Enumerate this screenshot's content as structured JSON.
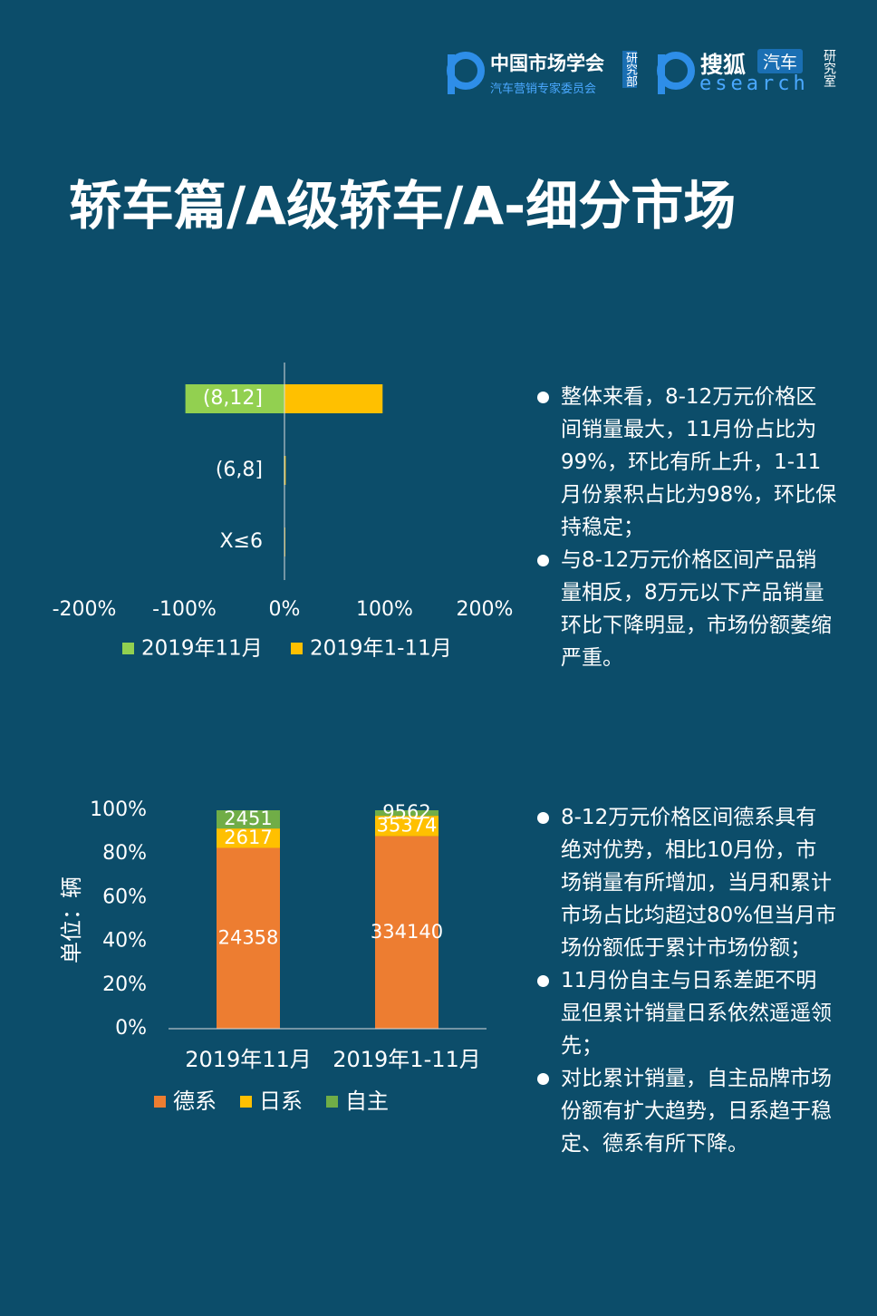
{
  "header": {
    "org1_name": "中国市场学会",
    "org1_sub": "汽车营销专家委员会",
    "org1_dept": "研究部",
    "org2_name": "搜狐",
    "org2_tag": "汽车",
    "org2_word": "esearch",
    "org2_dept": "研究室"
  },
  "title": "轿车篇/A级轿车/A-细分市场",
  "chart_data": [
    {
      "type": "bar",
      "orientation": "horizontal",
      "categories": [
        "(8,12]",
        "(6,8]",
        "X≤6"
      ],
      "series": [
        {
          "name": "2019年11月",
          "color": "#92d050",
          "values": [
            -99,
            -0.6,
            -0.4
          ]
        },
        {
          "name": "2019年1-11月",
          "color": "#ffc000",
          "values": [
            98,
            1.2,
            0.8
          ]
        }
      ],
      "xlim": [
        -200,
        200
      ],
      "xticks": [
        {
          "value": -200,
          "label": "-200%"
        },
        {
          "value": -100,
          "label": "-100%"
        },
        {
          "value": 0,
          "label": "0%"
        },
        {
          "value": 100,
          "label": "100%"
        },
        {
          "value": 200,
          "label": "200%"
        }
      ]
    },
    {
      "type": "bar",
      "stacked": true,
      "normalize": true,
      "ylabel": "单位：辆",
      "categories": [
        "2019年11月",
        "2019年1-11月"
      ],
      "series": [
        {
          "name": "德系",
          "color": "#ed7d31",
          "values": [
            24358,
            334140
          ]
        },
        {
          "name": "日系",
          "color": "#ffc000",
          "values": [
            2617,
            35374
          ]
        },
        {
          "name": "自主",
          "color": "#70ad47",
          "values": [
            2451,
            9562
          ]
        }
      ],
      "ylim": [
        0,
        100
      ],
      "yticks": [
        {
          "value": 0,
          "label": "0%"
        },
        {
          "value": 20,
          "label": "20%"
        },
        {
          "value": 40,
          "label": "40%"
        },
        {
          "value": 60,
          "label": "60%"
        },
        {
          "value": 80,
          "label": "80%"
        },
        {
          "value": 100,
          "label": "100%"
        }
      ]
    }
  ],
  "notes": [
    [
      "整体来看，8-12万元价格区间销量最大，11月份占比为99%，环比有所上升，1-11月份累积占比为98%，环比保持稳定；",
      "与8-12万元价格区间产品销量相反，8万元以下产品销量环比下降明显，市场份额萎缩严重。"
    ],
    [
      "8-12万元价格区间德系具有绝对优势，相比10月份，市场销量有所增加，当月和累计市场占比均超过80%但当月市场份额低于累计市场份额；",
      "11月份自主与日系差距不明显但累计销量日系依然遥遥领先；",
      "对比累计销量，自主品牌市场份额有扩大趋势，日系趋于稳定、德系有所下降。"
    ]
  ]
}
